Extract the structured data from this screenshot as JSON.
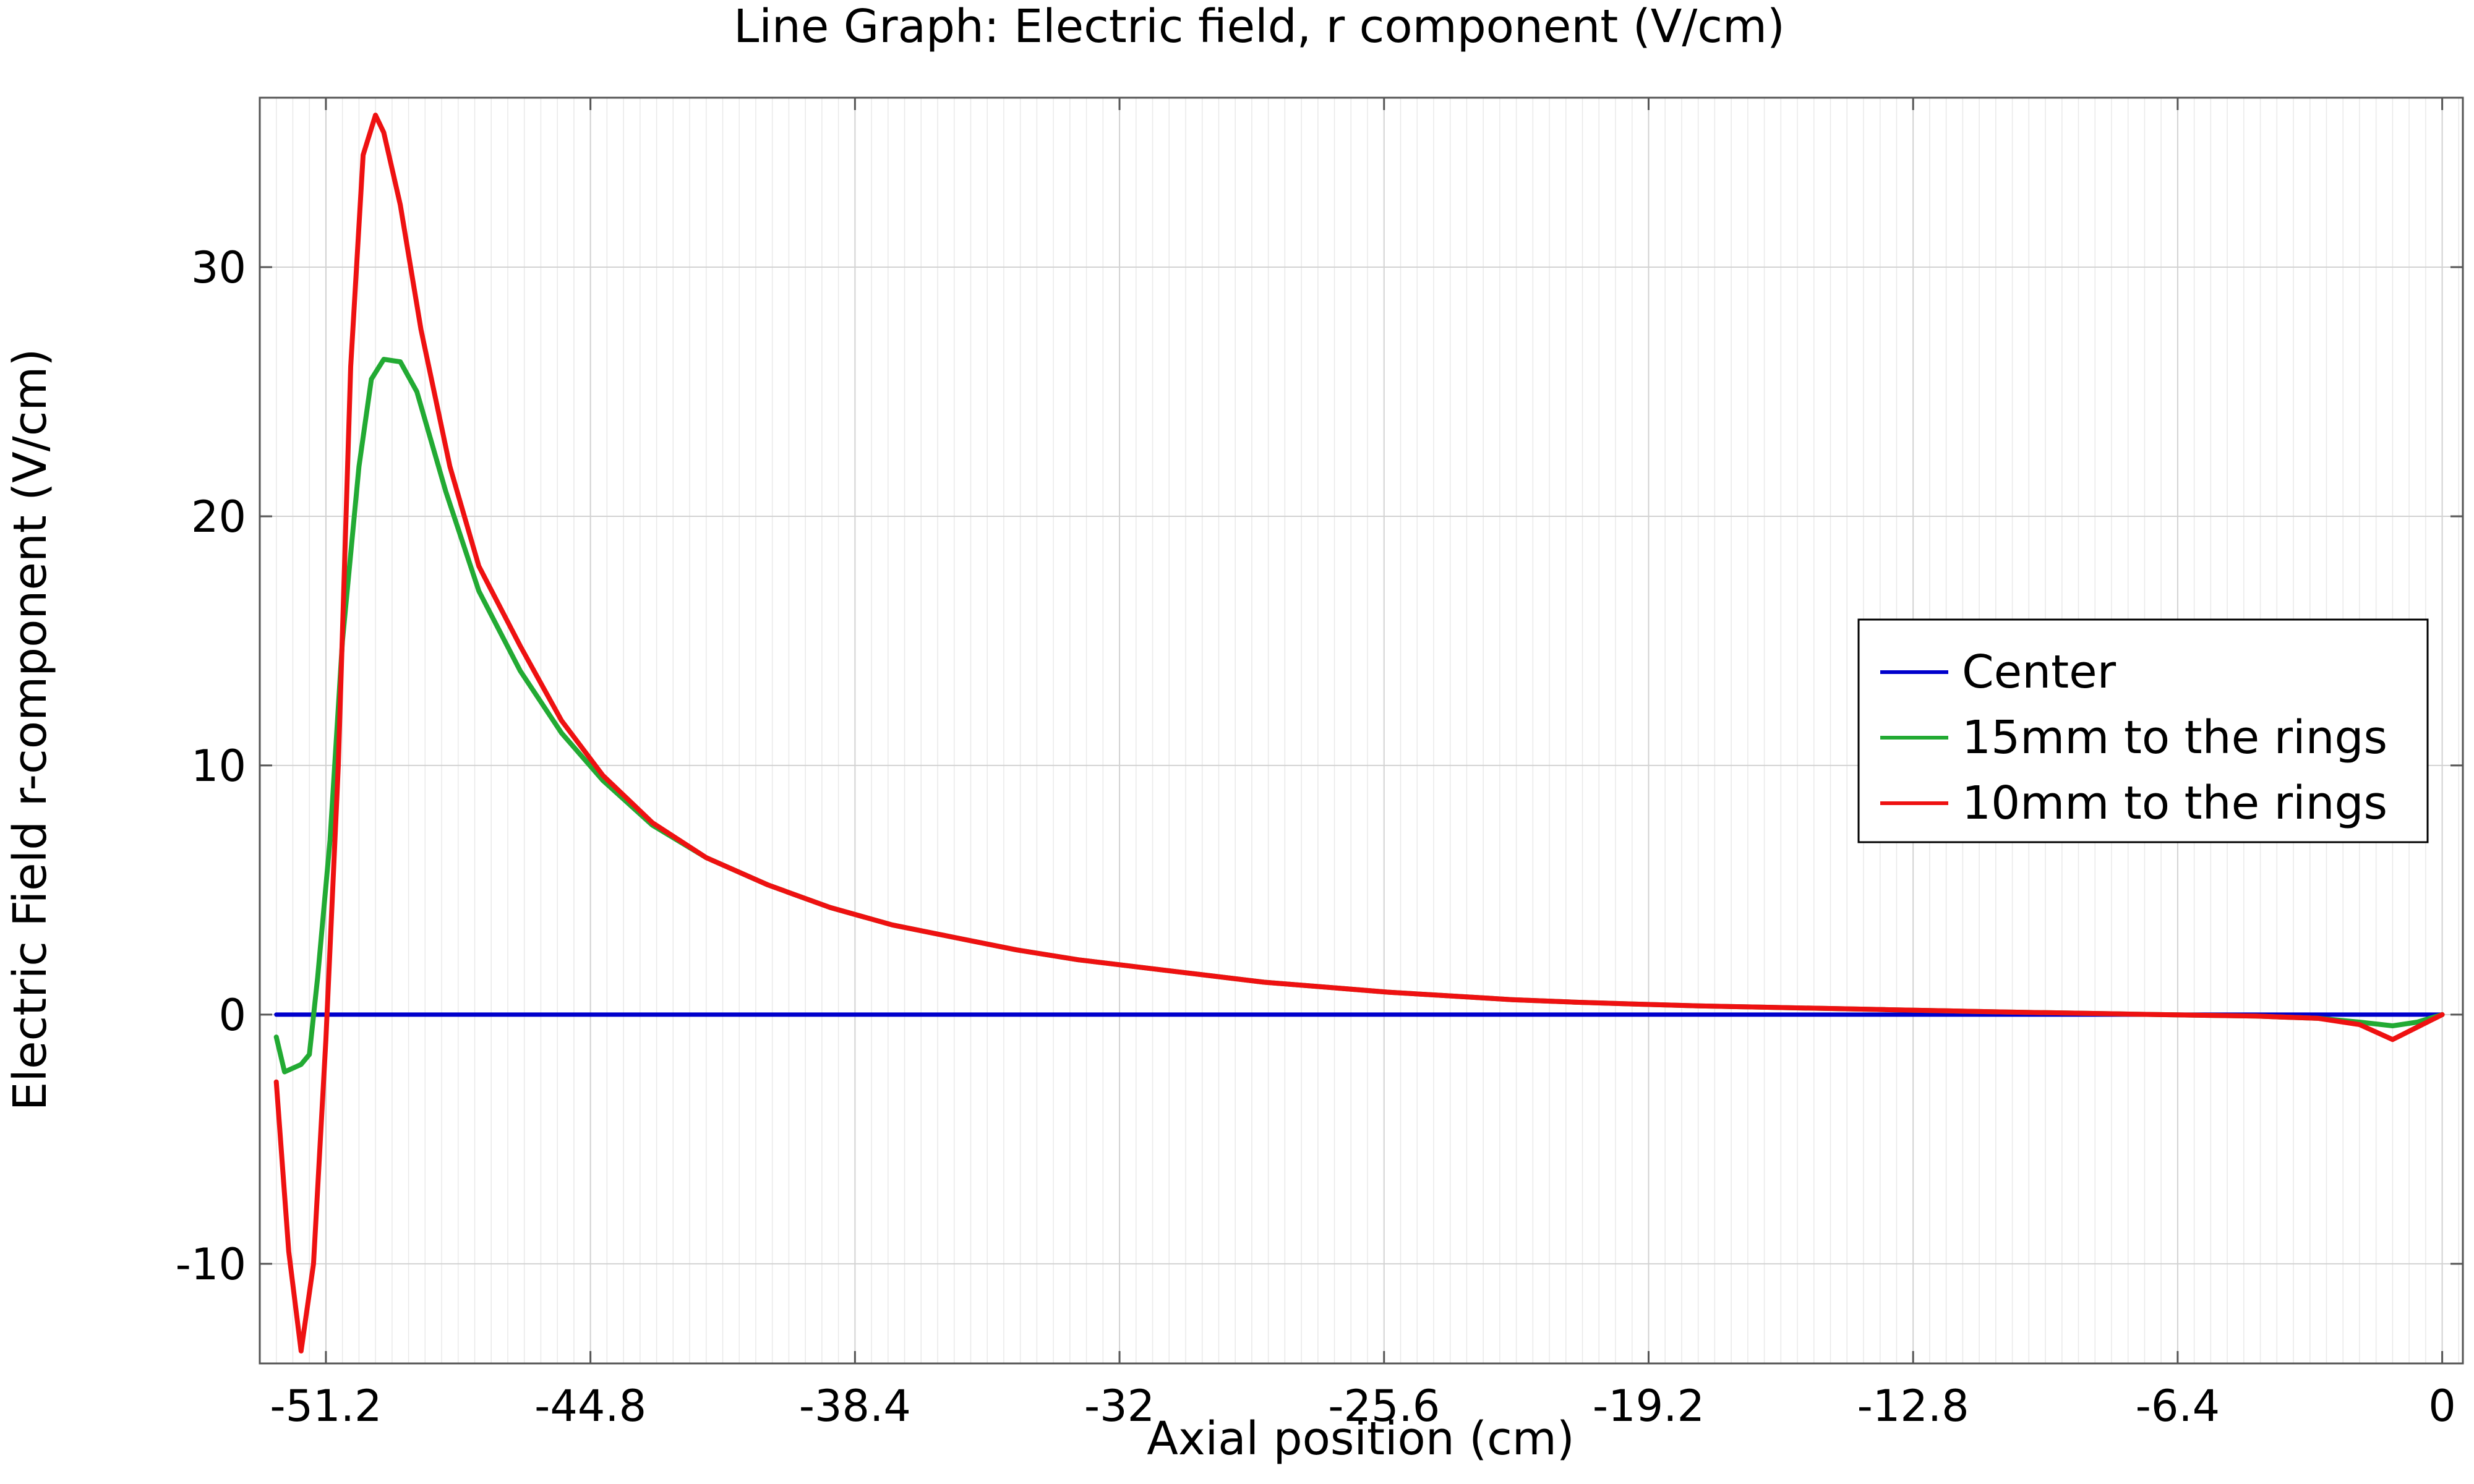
{
  "chart_data": {
    "type": "line",
    "title": "Line Graph: Electric field, r component (V/cm)",
    "xlabel": "Axial position (cm)",
    "ylabel": "Electric Field r-component (V/cm)",
    "xlim": [
      -52.8,
      0.5
    ],
    "ylim": [
      -14.0,
      36.8
    ],
    "x_ticks": [
      -51.2,
      -44.8,
      -38.4,
      -32,
      -25.6,
      -19.2,
      -12.8,
      -6.4,
      0
    ],
    "x_tick_labels": [
      "-51.2",
      "-44.8",
      "-38.4",
      "-32",
      "-25.6",
      "-19.2",
      "-12.8",
      "-6.4",
      "0"
    ],
    "y_ticks": [
      -10,
      0,
      10,
      20,
      30
    ],
    "y_tick_labels": [
      "-10",
      "0",
      "10",
      "20",
      "30"
    ],
    "grid": true,
    "legend_position": "right",
    "series": [
      {
        "name": "Center",
        "color": "#0000cc",
        "x": [
          -52.4,
          0
        ],
        "y": [
          0,
          0
        ]
      },
      {
        "name": "15mm to the rings",
        "color": "#22aa33",
        "x": [
          -52.4,
          -52.2,
          -51.8,
          -51.6,
          -51.4,
          -51.1,
          -50.8,
          -50.4,
          -50.1,
          -49.8,
          -49.4,
          -49.0,
          -48.3,
          -47.5,
          -46.5,
          -45.5,
          -44.5,
          -43.3,
          -42.0,
          -40.5,
          -39.0,
          -37.5,
          -36.0,
          -34.5,
          -33.0,
          -31.5,
          -30.0,
          -28.5,
          -27.0,
          -25.5,
          -24.0,
          -22.5,
          -21.0,
          -19.5,
          -18.0,
          -16.5,
          -15.0,
          -13.5,
          -12.0,
          -10.5,
          -9.0,
          -7.5,
          -6.0,
          -4.5,
          -3.0,
          -2.0,
          -1.2,
          -0.6,
          0
        ],
        "y": [
          -0.9,
          -2.3,
          -2.0,
          -1.6,
          1.5,
          7.0,
          15.0,
          22.0,
          25.5,
          26.3,
          26.2,
          25.0,
          21.0,
          17.0,
          13.8,
          11.3,
          9.4,
          7.6,
          6.3,
          5.2,
          4.3,
          3.6,
          3.1,
          2.6,
          2.2,
          1.9,
          1.6,
          1.3,
          1.1,
          0.9,
          0.75,
          0.6,
          0.5,
          0.42,
          0.35,
          0.3,
          0.25,
          0.2,
          0.15,
          0.1,
          0.06,
          0.02,
          -0.02,
          -0.06,
          -0.15,
          -0.3,
          -0.45,
          -0.3,
          0
        ]
      },
      {
        "name": "10mm to the rings",
        "color": "#ee1111",
        "x": [
          -52.4,
          -52.1,
          -51.8,
          -51.5,
          -51.2,
          -50.9,
          -50.6,
          -50.3,
          -50.0,
          -49.8,
          -49.4,
          -48.9,
          -48.2,
          -47.5,
          -46.5,
          -45.5,
          -44.5,
          -43.3,
          -42.0,
          -40.5,
          -39.0,
          -37.5,
          -36.0,
          -34.5,
          -33.0,
          -31.5,
          -30.0,
          -28.5,
          -27.0,
          -25.5,
          -24.0,
          -22.5,
          -21.0,
          -19.5,
          -18.0,
          -16.5,
          -15.0,
          -13.5,
          -12.0,
          -10.5,
          -9.0,
          -7.5,
          -6.0,
          -4.5,
          -3.0,
          -2.0,
          -1.2,
          -0.6,
          0
        ],
        "y": [
          -2.7,
          -9.5,
          -13.5,
          -10.0,
          -1.0,
          10.0,
          26.0,
          34.5,
          36.1,
          35.4,
          32.5,
          27.5,
          22.0,
          18.0,
          14.8,
          11.8,
          9.6,
          7.7,
          6.3,
          5.2,
          4.3,
          3.6,
          3.1,
          2.6,
          2.2,
          1.9,
          1.6,
          1.3,
          1.1,
          0.9,
          0.75,
          0.6,
          0.5,
          0.42,
          0.35,
          0.3,
          0.25,
          0.2,
          0.15,
          0.1,
          0.06,
          0.02,
          -0.02,
          -0.06,
          -0.15,
          -0.4,
          -1.0,
          -0.5,
          0
        ]
      }
    ]
  }
}
